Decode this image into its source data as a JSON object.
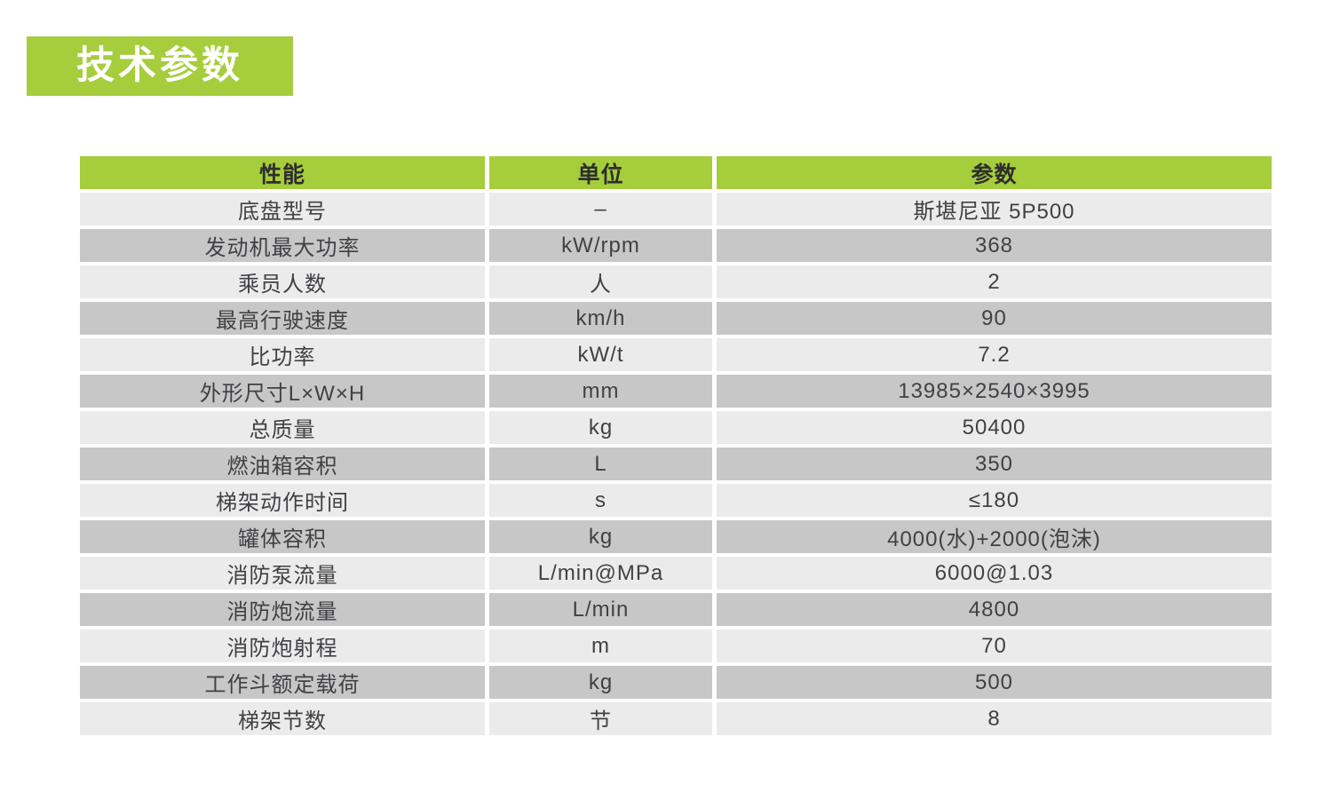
{
  "page": {
    "title": "技术参数"
  },
  "colors": {
    "accent_green": "#a6cd3b",
    "row_light": "#ebebeb",
    "row_dark": "#c7c7c7",
    "text": "#414145",
    "title_text": "#ffffff"
  },
  "table": {
    "headers": [
      "性能",
      "单位",
      "参数"
    ],
    "rows": [
      {
        "name": "底盘型号",
        "unit": "–",
        "value": "斯堪尼亚 5P500"
      },
      {
        "name": "发动机最大功率",
        "unit": "kW/rpm",
        "value": "368"
      },
      {
        "name": "乘员人数",
        "unit": "人",
        "value": "2"
      },
      {
        "name": "最高行驶速度",
        "unit": "km/h",
        "value": "90"
      },
      {
        "name": "比功率",
        "unit": "kW/t",
        "value": "7.2"
      },
      {
        "name": "外形尺寸L×W×H",
        "unit": "mm",
        "value": "13985×2540×3995"
      },
      {
        "name": "总质量",
        "unit": "kg",
        "value": "50400"
      },
      {
        "name": "燃油箱容积",
        "unit": "L",
        "value": "350"
      },
      {
        "name": "梯架动作时间",
        "unit": "s",
        "value": "≤180"
      },
      {
        "name": "罐体容积",
        "unit": "kg",
        "value": "4000(水)+2000(泡沫)"
      },
      {
        "name": "消防泵流量",
        "unit": "L/min@MPa",
        "value": "6000@1.03"
      },
      {
        "name": "消防炮流量",
        "unit": "L/min",
        "value": "4800"
      },
      {
        "name": "消防炮射程",
        "unit": "m",
        "value": "70"
      },
      {
        "name": "工作斗额定载荷",
        "unit": "kg",
        "value": "500"
      },
      {
        "name": "梯架节数",
        "unit": "节",
        "value": "8"
      }
    ]
  }
}
